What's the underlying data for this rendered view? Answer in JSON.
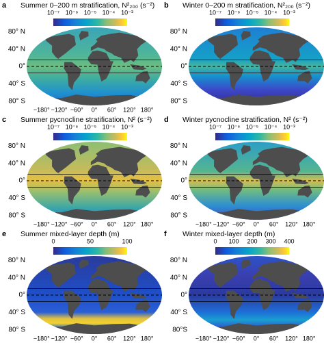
{
  "panels": [
    {
      "letter": "a",
      "title": "Summer 0–200 m stratification, N²₂₀₀ (s⁻²)",
      "colorbar": {
        "ticks": [
          "10⁻⁷",
          "10⁻⁶",
          "10⁻⁵",
          "10⁻⁴",
          "10⁻³"
        ]
      },
      "lat_labels": [
        "80° N",
        "40° N",
        "0°",
        "40° S",
        "80° S"
      ],
      "lon_labels": [
        "−180°",
        "−120°",
        "−60°",
        "0°",
        "60°",
        "120°",
        "180°"
      ]
    },
    {
      "letter": "b",
      "title": "Winter 0–200 m stratification, N²₂₀₀ (s⁻²)",
      "colorbar": {
        "ticks": [
          "10⁻⁷",
          "10⁻⁶",
          "10⁻⁵",
          "10⁻⁴",
          "10⁻³"
        ]
      },
      "lat_labels": [
        "80° N",
        "40° N",
        "0°",
        "40° S",
        "80° S"
      ]
    },
    {
      "letter": "c",
      "title": "Summer pycnocline stratification, N² (s⁻²)",
      "colorbar": {
        "ticks": [
          "10⁻⁷",
          "10⁻⁶",
          "10⁻⁵",
          "10⁻⁴",
          "10⁻³"
        ]
      },
      "lat_labels": [
        "80° N",
        "40° N",
        "0°",
        "40° S",
        "80° S"
      ],
      "lon_labels": [
        "−180°",
        "−120°",
        "−60°",
        "0°",
        "60°",
        "120°",
        "180°"
      ]
    },
    {
      "letter": "d",
      "title": "Winter pycnocline stratification, N² (s⁻²)",
      "colorbar": {
        "ticks": [
          "10⁻⁷",
          "10⁻⁶",
          "10⁻⁵",
          "10⁻⁴",
          "10⁻³"
        ]
      },
      "lat_labels": [
        "80° N",
        "40° N",
        "0°",
        "40° S",
        "80° S"
      ],
      "lon_labels": [
        "−180°",
        "−120°",
        "−60°",
        "0°",
        "60°",
        "120°",
        "180°"
      ]
    },
    {
      "letter": "e",
      "title": "Summer mixed-layer depth (m)",
      "colorbar": {
        "ticks": [
          "0",
          "50",
          "100"
        ]
      },
      "lat_labels": [
        "80° N",
        "40° N",
        "0°",
        "40° S",
        "80° S"
      ],
      "lon_labels": [
        "−180°",
        "−120°",
        "−60°",
        "0°",
        "60°",
        "120°",
        "180°"
      ]
    },
    {
      "letter": "f",
      "title": "Winter mixed-layer depth (m)",
      "colorbar": {
        "ticks": [
          "0",
          "100",
          "200",
          "300",
          "400"
        ]
      },
      "lat_labels": [
        "80° N",
        "40° N",
        "0°",
        "40° S",
        "80°S"
      ],
      "lon_labels": [
        "−180°",
        "−120°",
        "−60°",
        "0°",
        "60°",
        "120°",
        "180°"
      ]
    }
  ]
}
